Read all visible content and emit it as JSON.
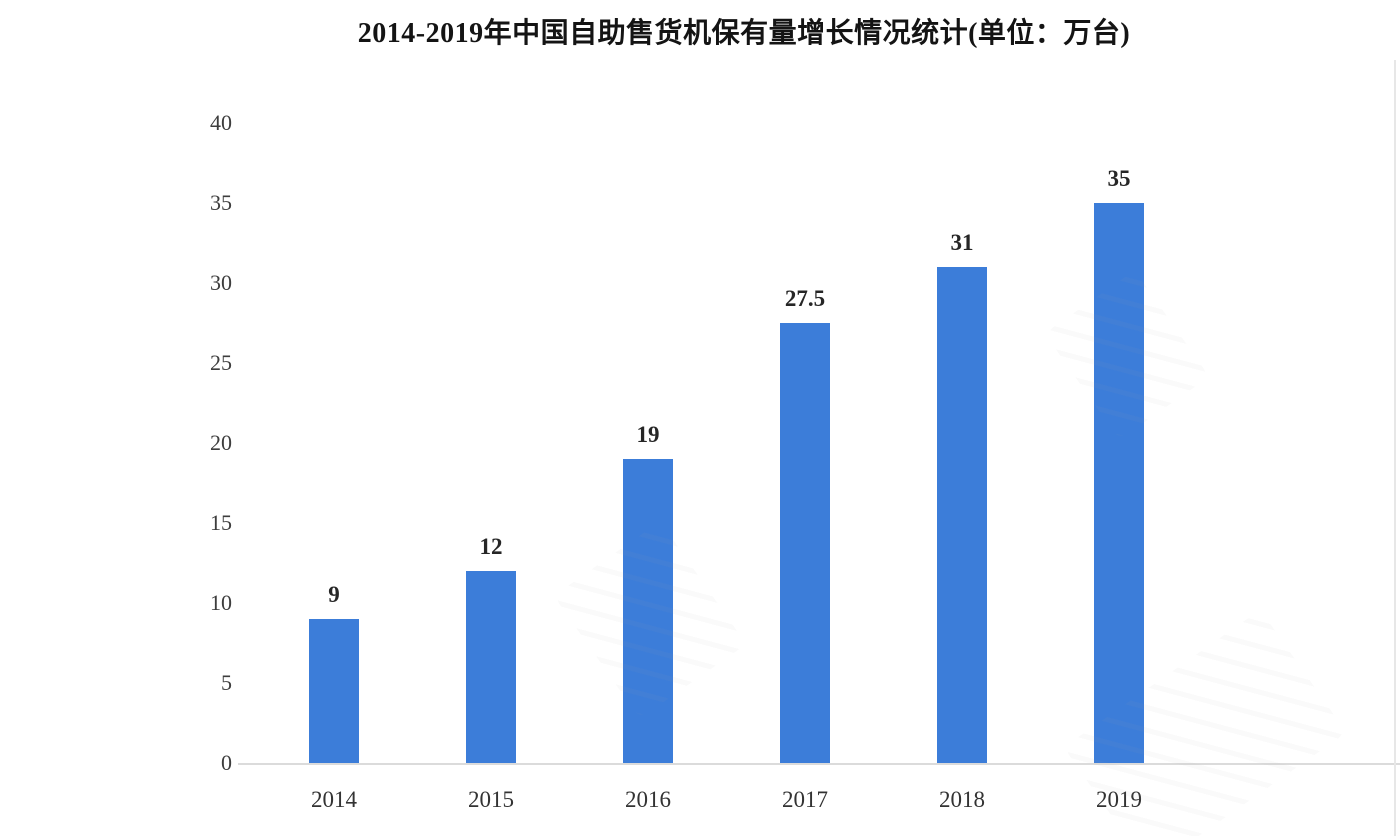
{
  "chart_data": {
    "type": "bar",
    "title": "2014-2019年中国自助售货机保有量增长情况统计(单位：万台)",
    "unit_label": "万台",
    "categories": [
      "2014",
      "2015",
      "2016",
      "2017",
      "2018",
      "2019"
    ],
    "values": [
      9,
      12,
      19,
      27.5,
      31,
      35
    ],
    "value_labels": [
      "9",
      "12",
      "19",
      "27.5",
      "31",
      "35"
    ],
    "xlabel": "",
    "ylabel": "",
    "ylim": [
      0,
      40
    ],
    "yticks": [
      0,
      5,
      10,
      15,
      20,
      25,
      30,
      35,
      40
    ],
    "grid": false,
    "legend": "none",
    "colors": {
      "bar": "#3C7DD9",
      "axis_line": "#DBDBDB",
      "tick_label": "#3D3D3D",
      "value_label": "#262626",
      "title": "#141414",
      "background": "#FFFFFF"
    }
  }
}
